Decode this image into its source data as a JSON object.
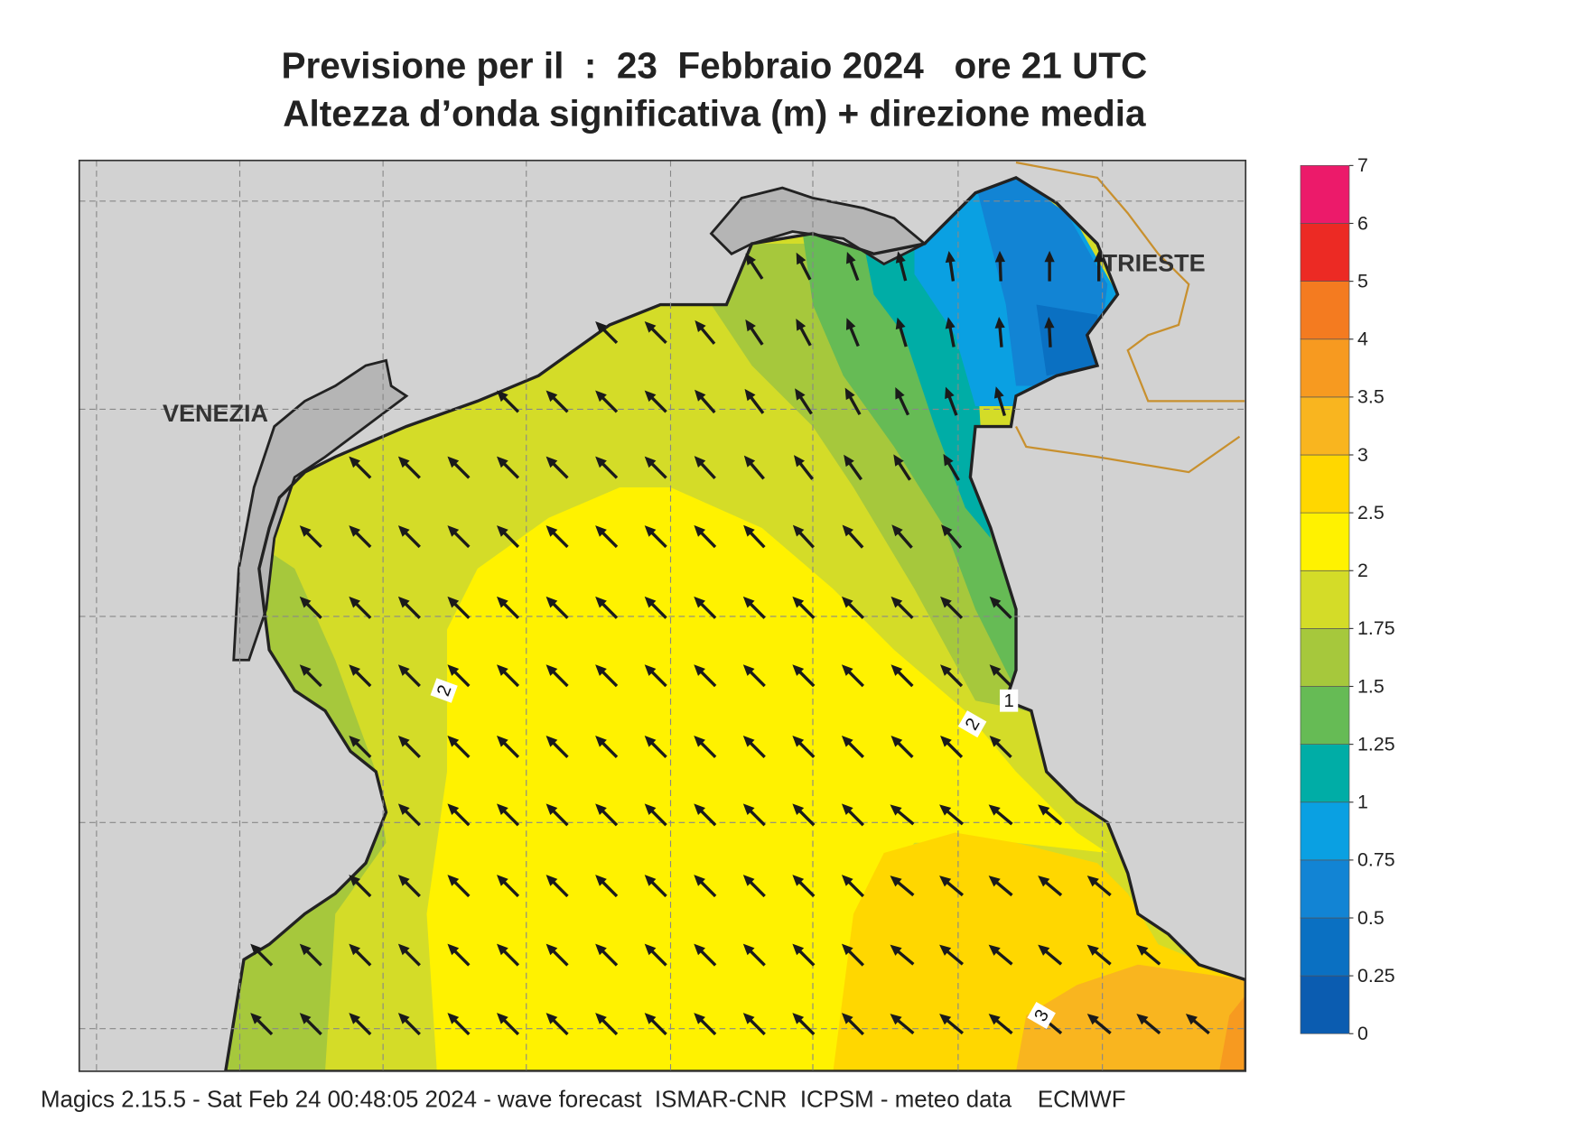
{
  "header": {
    "title_line1": "Previsione per il  :  23  Febbraio 2024   ore 21 UTC",
    "title_line2": "Altezza d’onda significativa (m) + direzione media"
  },
  "map": {
    "places": [
      "VENEZIA",
      "TRIESTE"
    ],
    "contour_labels": [
      "2",
      "1",
      "2",
      "3"
    ]
  },
  "colorbar": {
    "levels": [
      0,
      0.25,
      0.5,
      0.75,
      1,
      1.25,
      1.5,
      1.75,
      2,
      2.5,
      3,
      3.5,
      4,
      5,
      6,
      7
    ],
    "colors": [
      "#0b5cb0",
      "#0a70c2",
      "#1284d4",
      "#0aa0e2",
      "#00ada6",
      "#66bb55",
      "#a6c83c",
      "#d4dc28",
      "#fff200",
      "#ffd700",
      "#f9b51f",
      "#f79a20",
      "#f47b20",
      "#ec2a24",
      "#ec1a6a"
    ]
  },
  "footer": "Magics 2.15.5 - Sat Feb 24 00:48:05 2024 - wave forecast  ISMAR-CNR  ICPSM - meteo data    ECMWF"
}
